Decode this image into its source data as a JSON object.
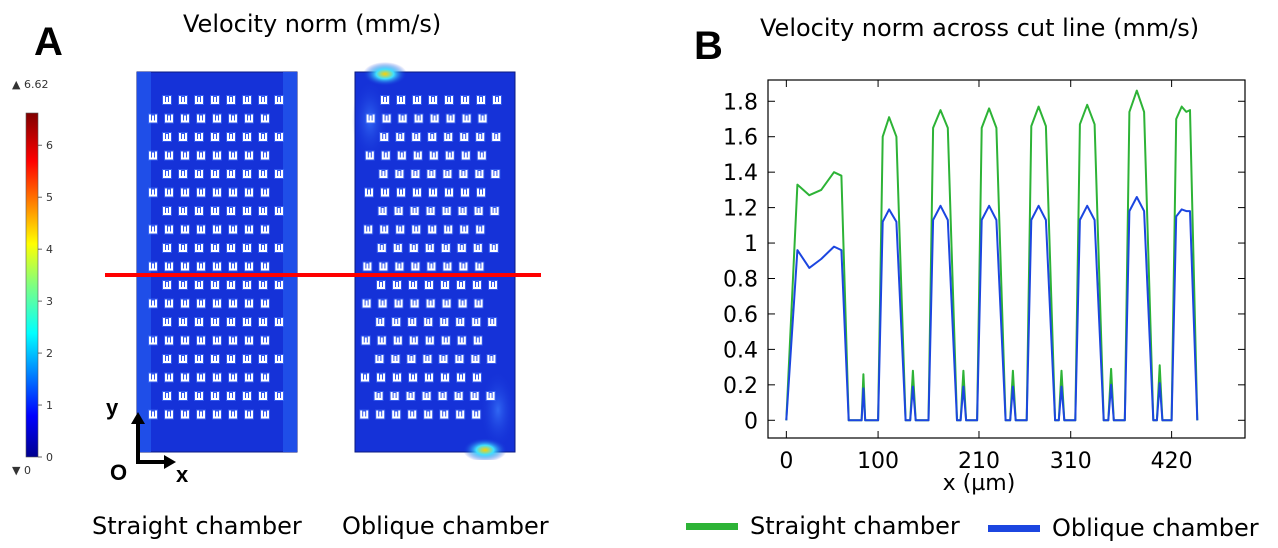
{
  "panel_a": {
    "letter": "A",
    "title": "Velocity norm (mm/s)",
    "colorbar": {
      "max_label": "▲ 6.62",
      "min_label": "▼ 0",
      "max": 6.62,
      "min": 0,
      "ticks": [
        "0",
        "1",
        "2",
        "3",
        "4",
        "5",
        "6"
      ]
    },
    "axes": {
      "y": "y",
      "origin": "O",
      "x": "x"
    },
    "captions": {
      "straight": "Straight chamber",
      "oblique": "Oblique chamber"
    },
    "colors": {
      "field": "#1532d8",
      "cut_line": "#ff0000",
      "hotspot": "#ffd000"
    }
  },
  "chart_data": {
    "type": "line",
    "title": "Velocity norm across cut line (mm/s)",
    "xlabel": "x (µm)",
    "ylabel": "",
    "xlim": [
      -20,
      500
    ],
    "ylim": [
      -0.1,
      1.92
    ],
    "xticks": [
      0,
      100,
      210,
      310,
      420
    ],
    "yticks": [
      0,
      0.2,
      0.4,
      0.6,
      0.8,
      1,
      1.2,
      1.4,
      1.6,
      1.8
    ],
    "ytick_labels": [
      "0",
      "0.2",
      "0.4",
      "0.6",
      "0.8",
      "1",
      "1.2",
      "1.4",
      "1.6",
      "1.8"
    ],
    "legend_position": "bottom",
    "series": [
      {
        "name": "Straight chamber",
        "color": "#2db336",
        "points": [
          [
            0,
            0
          ],
          [
            12,
            1.33
          ],
          [
            25,
            1.27
          ],
          [
            38,
            1.3
          ],
          [
            52,
            1.4
          ],
          [
            60,
            1.38
          ],
          [
            68,
            0
          ],
          [
            82,
            0
          ],
          [
            84,
            0.26
          ],
          [
            86,
            0
          ],
          [
            100,
            0
          ],
          [
            105,
            1.6
          ],
          [
            112,
            1.71
          ],
          [
            120,
            1.6
          ],
          [
            130,
            0
          ],
          [
            135,
            0
          ],
          [
            138,
            0.28
          ],
          [
            141,
            0
          ],
          [
            155,
            0
          ],
          [
            160,
            1.65
          ],
          [
            168,
            1.75
          ],
          [
            176,
            1.65
          ],
          [
            186,
            0
          ],
          [
            190,
            0
          ],
          [
            193,
            0.28
          ],
          [
            196,
            0
          ],
          [
            208,
            0
          ],
          [
            213,
            1.65
          ],
          [
            221,
            1.76
          ],
          [
            229,
            1.65
          ],
          [
            239,
            0
          ],
          [
            244,
            0
          ],
          [
            247,
            0.28
          ],
          [
            250,
            0
          ],
          [
            262,
            0
          ],
          [
            267,
            1.66
          ],
          [
            275,
            1.77
          ],
          [
            283,
            1.66
          ],
          [
            293,
            0
          ],
          [
            297,
            0
          ],
          [
            300,
            0.28
          ],
          [
            303,
            0
          ],
          [
            315,
            0
          ],
          [
            320,
            1.67
          ],
          [
            328,
            1.78
          ],
          [
            336,
            1.67
          ],
          [
            346,
            0
          ],
          [
            351,
            0
          ],
          [
            354,
            0.29
          ],
          [
            357,
            0
          ],
          [
            369,
            0
          ],
          [
            374,
            1.74
          ],
          [
            382,
            1.86
          ],
          [
            390,
            1.74
          ],
          [
            400,
            0
          ],
          [
            404,
            0
          ],
          [
            407,
            0.31
          ],
          [
            410,
            0
          ],
          [
            420,
            0
          ],
          [
            425,
            1.7
          ],
          [
            431,
            1.77
          ],
          [
            436,
            1.74
          ],
          [
            440,
            1.75
          ],
          [
            448,
            0
          ]
        ]
      },
      {
        "name": "Oblique chamber",
        "color": "#1c46e0",
        "points": [
          [
            0,
            0
          ],
          [
            12,
            0.96
          ],
          [
            25,
            0.86
          ],
          [
            38,
            0.91
          ],
          [
            52,
            0.98
          ],
          [
            60,
            0.96
          ],
          [
            68,
            0
          ],
          [
            82,
            0
          ],
          [
            84,
            0.18
          ],
          [
            86,
            0
          ],
          [
            100,
            0
          ],
          [
            105,
            1.12
          ],
          [
            112,
            1.19
          ],
          [
            120,
            1.12
          ],
          [
            130,
            0
          ],
          [
            135,
            0
          ],
          [
            138,
            0.19
          ],
          [
            141,
            0
          ],
          [
            155,
            0
          ],
          [
            160,
            1.13
          ],
          [
            168,
            1.21
          ],
          [
            176,
            1.13
          ],
          [
            186,
            0
          ],
          [
            190,
            0
          ],
          [
            193,
            0.19
          ],
          [
            196,
            0
          ],
          [
            208,
            0
          ],
          [
            213,
            1.13
          ],
          [
            221,
            1.21
          ],
          [
            229,
            1.13
          ],
          [
            239,
            0
          ],
          [
            244,
            0
          ],
          [
            247,
            0.19
          ],
          [
            250,
            0
          ],
          [
            262,
            0
          ],
          [
            267,
            1.13
          ],
          [
            275,
            1.21
          ],
          [
            283,
            1.13
          ],
          [
            293,
            0
          ],
          [
            297,
            0
          ],
          [
            300,
            0.19
          ],
          [
            303,
            0
          ],
          [
            315,
            0
          ],
          [
            320,
            1.13
          ],
          [
            328,
            1.21
          ],
          [
            336,
            1.13
          ],
          [
            346,
            0
          ],
          [
            351,
            0
          ],
          [
            354,
            0.2
          ],
          [
            357,
            0
          ],
          [
            369,
            0
          ],
          [
            374,
            1.18
          ],
          [
            382,
            1.26
          ],
          [
            390,
            1.18
          ],
          [
            400,
            0
          ],
          [
            404,
            0
          ],
          [
            407,
            0.21
          ],
          [
            410,
            0
          ],
          [
            420,
            0
          ],
          [
            425,
            1.15
          ],
          [
            431,
            1.19
          ],
          [
            436,
            1.18
          ],
          [
            440,
            1.18
          ],
          [
            448,
            0
          ]
        ]
      }
    ]
  }
}
